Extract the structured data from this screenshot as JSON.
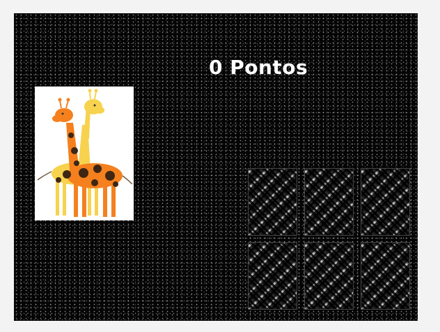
{
  "game": {
    "score_label": "0 Pontos"
  },
  "target_card": {
    "image": "giraffes-icon"
  },
  "cards": [
    {
      "face": "down",
      "pattern": "woven-metal-pattern"
    },
    {
      "face": "down",
      "pattern": "woven-metal-pattern"
    },
    {
      "face": "down",
      "pattern": "woven-metal-pattern"
    },
    {
      "face": "down",
      "pattern": "woven-metal-pattern"
    },
    {
      "face": "down",
      "pattern": "woven-metal-pattern"
    },
    {
      "face": "down",
      "pattern": "woven-metal-pattern"
    }
  ],
  "colors": {
    "board": "#050505",
    "page": "#f3f3f3",
    "score_text": "#ffffff",
    "giraffe_orange": "#f5801e",
    "giraffe_yellow": "#f7d24e",
    "giraffe_spots": "#3d2614"
  }
}
